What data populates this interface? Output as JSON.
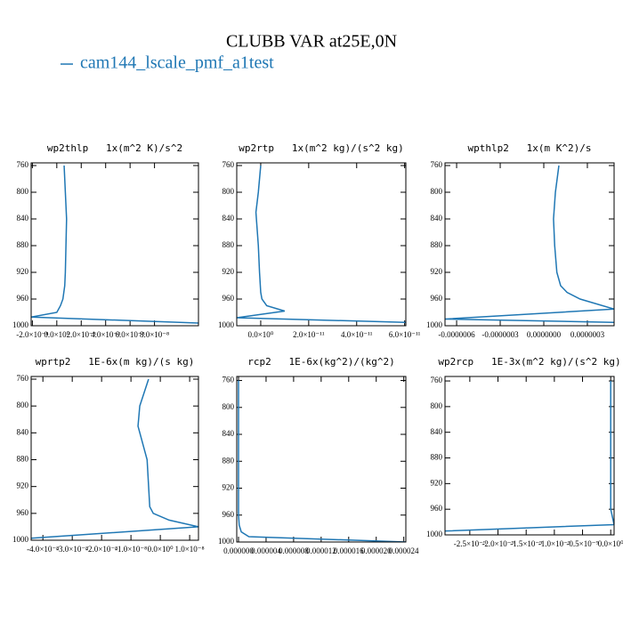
{
  "title": "CLUBB VAR at25E,0N",
  "chart_data": [
    {
      "type": "line",
      "title": "wp2thlp   1x(m^2 K)/s^2",
      "y": [
        760,
        800,
        840,
        880,
        920,
        940,
        960,
        970,
        980,
        987,
        996
      ],
      "series": [
        {
          "name": "cam144_lscale_pmf_a1test",
          "color": "#1f77b4",
          "values": [
            6e-09,
            7e-09,
            8e-09,
            7.5e-09,
            7e-09,
            6.5e-09,
            5e-09,
            3e-09,
            0,
            -2.1e-08,
            1.16e-07
          ]
        }
      ],
      "xlim": [
        -2.1e-08,
        1.16e-07
      ],
      "xticks": [
        {
          "value": -2e-08,
          "label": "-2.0×10⁻⁸"
        },
        {
          "value": 0,
          "label": "0.0×10⁰"
        },
        {
          "value": 2e-08,
          "label": "2.0×10⁻⁸"
        },
        {
          "value": 4e-08,
          "label": "4.0×10⁻⁸"
        },
        {
          "value": 6e-08,
          "label": "6.0×10⁻⁸"
        },
        {
          "value": 8e-08,
          "label": "8.0×10⁻⁸"
        }
      ],
      "ylim": [
        1000,
        756
      ],
      "yticks": [
        760,
        800,
        840,
        880,
        920,
        960,
        1000
      ]
    },
    {
      "type": "line",
      "title": "wp2rtp   1x(m^2 kg)/(s^2 kg)",
      "y": [
        760,
        800,
        830,
        880,
        920,
        950,
        960,
        970,
        978,
        988,
        995
      ],
      "series": [
        {
          "name": "cam144_lscale_pmf_a1test",
          "color": "#1f77b4",
          "values": [
            0,
            -1e-12,
            -2e-12,
            -1e-12,
            -5e-13,
            0,
            5e-13,
            2.5e-12,
            1e-11,
            -1e-11,
            6.05e-11
          ]
        }
      ],
      "xlim": [
        -1e-11,
        6.05e-11
      ],
      "xticks": [
        {
          "value": 0,
          "label": "0.0×10⁰"
        },
        {
          "value": 2e-11,
          "label": "2.0×10⁻¹¹"
        },
        {
          "value": 4e-11,
          "label": "4.0×10⁻¹¹"
        },
        {
          "value": 6e-11,
          "label": "6.0×10⁻¹¹"
        }
      ],
      "ylim": [
        1000,
        756
      ],
      "yticks": [
        760,
        800,
        840,
        880,
        920,
        960,
        1000
      ]
    },
    {
      "type": "line",
      "title": "wpthlp2   1x(m K^2)/s",
      "y": [
        760,
        800,
        840,
        880,
        920,
        940,
        950,
        960,
        975,
        990,
        995
      ],
      "series": [
        {
          "name": "cam144_lscale_pmf_a1test",
          "color": "#1f77b4",
          "values": [
            1.04e-07,
            8e-08,
            6.7e-08,
            7.5e-08,
            9e-08,
            1.16e-07,
            1.6e-07,
            2.5e-07,
            4.84e-07,
            -6.8e-07,
            4.84e-07
          ]
        }
      ],
      "xlim": [
        -6.8e-07,
        4.84e-07
      ],
      "xticks": [
        {
          "value": -6e-07,
          "label": "-0.0000006"
        },
        {
          "value": -3e-07,
          "label": "-0.0000003"
        },
        {
          "value": 0,
          "label": "0.0000000"
        },
        {
          "value": 3e-07,
          "label": "0.0000003"
        }
      ],
      "ylim": [
        1000,
        756
      ],
      "yticks": [
        760,
        800,
        840,
        880,
        920,
        960,
        1000
      ]
    },
    {
      "type": "line",
      "title": "wprtp2   1E-6x(m kg)/(s kg)",
      "y": [
        760,
        800,
        830,
        880,
        950,
        960,
        970,
        980,
        997
      ],
      "series": [
        {
          "name": "cam144_lscale_pmf_a1test",
          "color": "#1f77b4",
          "values": [
            -4e-09,
            -7e-09,
            -7.6e-09,
            -4.5e-09,
            -3.6e-09,
            -2.4e-09,
            3e-09,
            1.3e-08,
            -4.4e-08
          ]
        }
      ],
      "xlim": [
        -4.4e-08,
        1.3e-08
      ],
      "xticks": [
        {
          "value": -4e-08,
          "label": "-4.0×10⁻⁸"
        },
        {
          "value": -3e-08,
          "label": "-3.0×10⁻⁸"
        },
        {
          "value": -2e-08,
          "label": "-2.0×10⁻⁸"
        },
        {
          "value": -1e-08,
          "label": "-1.0×10⁻⁸"
        },
        {
          "value": 0,
          "label": "0.0×10⁰"
        },
        {
          "value": 1e-08,
          "label": "1.0×10⁻⁸"
        }
      ],
      "ylim": [
        1000,
        756
      ],
      "yticks": [
        760,
        800,
        840,
        880,
        920,
        960,
        1000
      ]
    },
    {
      "type": "line",
      "title": "rcp2   1E-6x(kg^2)/(kg^2)",
      "y": [
        760,
        800,
        840,
        880,
        920,
        960,
        975,
        985,
        992,
        1000
      ],
      "series": [
        {
          "name": "cam144_lscale_pmf_a1test",
          "color": "#1f77b4",
          "values": [
            0,
            0,
            0,
            0,
            0,
            0,
            1e-07,
            4e-07,
            1.5e-06,
            2.43e-05
          ]
        }
      ],
      "xlim": [
        -2.6e-07,
        2.43e-05
      ],
      "xticks": [
        {
          "value": 0,
          "label": "0.000000"
        },
        {
          "value": 4e-06,
          "label": "0.000004"
        },
        {
          "value": 8e-06,
          "label": "0.000008"
        },
        {
          "value": 1.2e-05,
          "label": "0.000012"
        },
        {
          "value": 1.6e-05,
          "label": "0.000016"
        },
        {
          "value": 2e-05,
          "label": "0.000020"
        },
        {
          "value": 2.4e-05,
          "label": "0.000024"
        }
      ],
      "ylim": [
        1000,
        754
      ],
      "yticks": [
        760,
        800,
        840,
        880,
        920,
        960,
        1000
      ]
    },
    {
      "type": "line",
      "title": "wp2rcp   1E-3x(m^2 kg)/(s^2 kg)",
      "y": [
        760,
        800,
        840,
        880,
        920,
        960,
        984,
        994
      ],
      "series": [
        {
          "name": "cam144_lscale_pmf_a1test",
          "color": "#1f77b4",
          "values": [
            0,
            0,
            0,
            0,
            0,
            0,
            6e-11,
            -2.94e-09
          ]
        }
      ],
      "xlim": [
        -2.94e-09,
        6e-11
      ],
      "xticks": [
        {
          "value": -2.5e-09,
          "label": "-2.5×10⁻⁹"
        },
        {
          "value": -2e-09,
          "label": "-2.0×10⁻⁹"
        },
        {
          "value": -1.5e-09,
          "label": "-1.5×10⁻⁹"
        },
        {
          "value": -1e-09,
          "label": "-1.0×10⁻⁹"
        },
        {
          "value": -5e-10,
          "label": "-0.5×10⁻⁹"
        },
        {
          "value": 0,
          "label": "0.0×10⁰"
        }
      ],
      "ylim": [
        1000,
        753
      ],
      "yticks": [
        760,
        800,
        840,
        880,
        920,
        960,
        1000
      ]
    }
  ]
}
